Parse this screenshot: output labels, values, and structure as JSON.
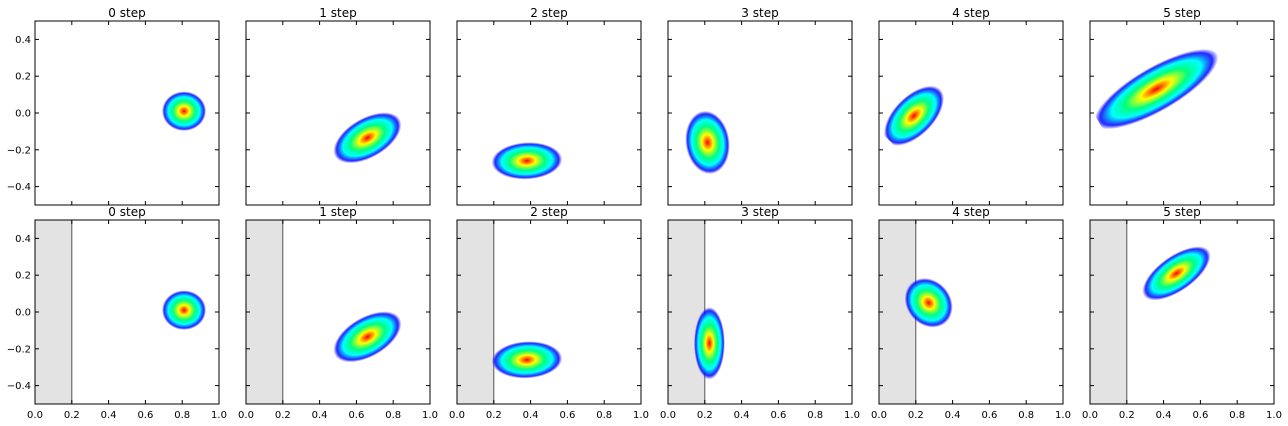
{
  "chart_data": {
    "type": "heatmap",
    "layout": "2x6 small multiples, shared axes",
    "xlim": [
      0.0,
      1.0
    ],
    "ylim": [
      -0.5,
      0.5
    ],
    "xticks": [
      "0.0",
      "0.2",
      "0.4",
      "0.6",
      "0.8",
      "1.0"
    ],
    "yticks": [
      "−0.4",
      "−0.2",
      "0.0",
      "0.2",
      "0.4"
    ],
    "colormap": [
      "#ff0000",
      "#ffff00",
      "#00ff80",
      "#00ffff",
      "#0000ff"
    ],
    "shaded_region_color": "#e3e3e3",
    "rows": [
      {
        "shaded_region_x": null,
        "panels": [
          {
            "title": "0 step",
            "mean": [
              0.81,
              0.01
            ],
            "sd": [
              0.05,
              0.045
            ],
            "angle_deg": 0
          },
          {
            "title": "1 step",
            "mean": [
              0.66,
              -0.135
            ],
            "sd": [
              0.085,
              0.045
            ],
            "angle_deg": 30
          },
          {
            "title": "2 step",
            "mean": [
              0.38,
              -0.26
            ],
            "sd": [
              0.08,
              0.042
            ],
            "angle_deg": 3
          },
          {
            "title": "3 step",
            "mean": [
              0.215,
              -0.16
            ],
            "sd": [
              0.05,
              0.072
            ],
            "angle_deg": 8
          },
          {
            "title": "4 step",
            "mean": [
              0.19,
              -0.015
            ],
            "sd": [
              0.085,
              0.045
            ],
            "angle_deg": 45
          },
          {
            "title": "5 step",
            "mean": [
              0.36,
              0.13
            ],
            "sd": [
              0.16,
              0.05
            ],
            "angle_deg": 30
          }
        ]
      },
      {
        "shaded_region_x": [
          0.0,
          0.2
        ],
        "panels": [
          {
            "title": "0 step",
            "mean": [
              0.81,
              0.01
            ],
            "sd": [
              0.05,
              0.045
            ],
            "angle_deg": 0
          },
          {
            "title": "1 step",
            "mean": [
              0.66,
              -0.135
            ],
            "sd": [
              0.085,
              0.045
            ],
            "angle_deg": 30
          },
          {
            "title": "2 step",
            "mean": [
              0.38,
              -0.26
            ],
            "sd": [
              0.08,
              0.042
            ],
            "angle_deg": 3
          },
          {
            "title": "3 step",
            "mean": [
              0.225,
              -0.17
            ],
            "sd": [
              0.035,
              0.082
            ],
            "angle_deg": 0
          },
          {
            "title": "4 step",
            "mean": [
              0.27,
              0.05
            ],
            "sd": [
              0.05,
              0.06
            ],
            "angle_deg": 40
          },
          {
            "title": "5 step",
            "mean": [
              0.47,
              0.21
            ],
            "sd": [
              0.09,
              0.04
            ],
            "angle_deg": 35
          }
        ]
      }
    ]
  }
}
